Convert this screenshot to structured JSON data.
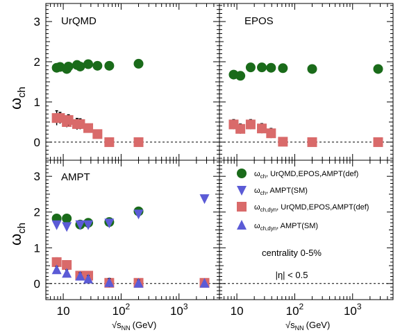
{
  "chart_data": {
    "type": "scatter",
    "x_scale": "log",
    "xlim": [
      5,
      5000
    ],
    "ylim": [
      -0.45,
      3.45
    ],
    "grid": false,
    "xlabel_text": "√s",
    "xlabel_sub": "NN",
    "xlabel_unit": "(GeV)",
    "ylabel_text": "ω",
    "ylabel_sub": "ch",
    "x_ticks": [
      {
        "value": 10,
        "base": "10",
        "exp": ""
      },
      {
        "value": 100,
        "base": "10",
        "exp": "2"
      },
      {
        "value": 1000,
        "base": "10",
        "exp": "3"
      }
    ],
    "y_ticks": [
      0,
      1,
      2,
      3
    ],
    "colors": {
      "green": "#1a6b1a",
      "blue": "#5b5bd6",
      "red": "#d96a6a"
    },
    "legend": {
      "placement": "bottom-right panel",
      "entries": [
        {
          "marker": "circle",
          "color": "#1a6b1a",
          "sym": "ω",
          "sub": "ch",
          "rest": ", UrQMD,EPOS,AMPT(def)"
        },
        {
          "marker": "triangle-down",
          "color": "#5b5bd6",
          "sym": "ω",
          "sub": "ch",
          "rest": ", AMPT(SM)"
        },
        {
          "marker": "square",
          "color": "#d96a6a",
          "sym": "ω",
          "sub": "ch,dyn",
          "rest": ", UrQMD,EPOS,AMPT(def)"
        },
        {
          "marker": "triangle-up",
          "color": "#5b5bd6",
          "sym": "ω",
          "sub": "ch,dyn",
          "rest": ", AMPT(SM)"
        }
      ],
      "notes": [
        "centrality 0-5%",
        "|η| < 0.5"
      ]
    },
    "panels": [
      {
        "label": "UrQMD",
        "series": [
          {
            "marker": "circle",
            "color": "#1a6b1a",
            "points": [
              [
                7.7,
                1.85
              ],
              [
                8.8,
                1.87
              ],
              [
                11.5,
                1.82
              ],
              [
                12.3,
                1.88
              ],
              [
                17.3,
                1.92
              ],
              [
                19.6,
                1.88
              ],
              [
                27,
                1.94
              ],
              [
                39,
                1.9
              ],
              [
                62.4,
                1.9
              ],
              [
                200,
                1.95
              ]
            ]
          },
          {
            "marker": "square",
            "color": "#d96a6a",
            "points": [
              [
                7.7,
                0.6,
                0.18
              ],
              [
                8.8,
                0.6,
                0.14
              ],
              [
                11.5,
                0.5,
                0.13
              ],
              [
                12.3,
                0.55,
                0.13
              ],
              [
                17.3,
                0.45,
                0.14
              ],
              [
                19.6,
                0.45,
                0.13
              ],
              [
                27,
                0.35,
                0.1
              ],
              [
                39,
                0.2,
                0.1
              ],
              [
                62.4,
                0.0,
                0.06
              ],
              [
                200,
                0.0,
                0.06
              ]
            ]
          }
        ]
      },
      {
        "label": "EPOS",
        "series": [
          {
            "marker": "circle",
            "color": "#1a6b1a",
            "points": [
              [
                8.8,
                1.68
              ],
              [
                11.5,
                1.65
              ],
              [
                17.3,
                1.86
              ],
              [
                27,
                1.86
              ],
              [
                39,
                1.85
              ],
              [
                62.4,
                1.84
              ],
              [
                200,
                1.82
              ],
              [
                2760,
                1.82
              ]
            ]
          },
          {
            "marker": "square",
            "color": "#d96a6a",
            "points": [
              [
                8.8,
                0.44,
                0.12
              ],
              [
                11.5,
                0.33,
                0.12
              ],
              [
                17.3,
                0.44,
                0.12
              ],
              [
                27,
                0.34,
                0.12
              ],
              [
                39,
                0.22,
                0.12
              ],
              [
                62.4,
                0.01,
                0.06
              ],
              [
                200,
                0.0,
                0.05
              ],
              [
                2760,
                0.0,
                0.05
              ]
            ]
          }
        ]
      },
      {
        "label": "AMPT",
        "series": [
          {
            "marker": "circle",
            "color": "#1a6b1a",
            "points": [
              [
                7.7,
                1.82
              ],
              [
                11.5,
                1.82
              ],
              [
                19.6,
                1.65
              ],
              [
                27,
                1.7
              ],
              [
                62.4,
                1.72
              ],
              [
                200,
                2.02
              ]
            ]
          },
          {
            "marker": "triangle-down",
            "color": "#5b5bd6",
            "points": [
              [
                7.7,
                1.65
              ],
              [
                11.5,
                1.6
              ],
              [
                19.6,
                1.65
              ],
              [
                27,
                1.65
              ],
              [
                62.4,
                1.7
              ],
              [
                200,
                1.95
              ],
              [
                2760,
                2.38
              ]
            ]
          },
          {
            "marker": "square",
            "color": "#d96a6a",
            "points": [
              [
                7.7,
                0.6,
                0.12
              ],
              [
                11.5,
                0.52,
                0.12
              ],
              [
                19.6,
                0.22,
                0.12
              ],
              [
                27,
                0.22,
                0.12
              ],
              [
                62.4,
                0.02,
                0.12
              ],
              [
                200,
                0.02,
                0.1
              ],
              [
                2760,
                0.02,
                0.06
              ]
            ]
          },
          {
            "marker": "triangle-up",
            "color": "#5b5bd6",
            "points": [
              [
                7.7,
                0.38,
                0.1
              ],
              [
                11.5,
                0.28,
                0.1
              ],
              [
                19.6,
                0.2,
                0.1
              ],
              [
                27,
                0.12,
                0.1
              ],
              [
                62.4,
                0.02,
                0.12
              ],
              [
                200,
                0.0,
                0.1
              ],
              [
                2760,
                0.0,
                0.06
              ]
            ]
          }
        ]
      }
    ]
  }
}
